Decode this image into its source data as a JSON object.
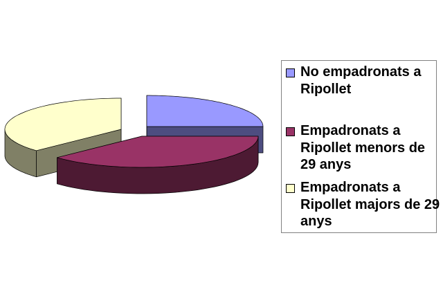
{
  "chart_data": {
    "type": "pie",
    "style": "3d-exploded",
    "legend_position": "right",
    "series": [
      {
        "name": "No empadronats a Ripollet",
        "value": 25,
        "color": "#9999ff",
        "side_color": "#4d4d80"
      },
      {
        "name": "Empadronats a Ripollet menors de 29 anys",
        "value": 38,
        "color": "#993366",
        "side_color": "#4d1a33"
      },
      {
        "name": "Empadronats a Ripollet majors de 29 anys",
        "value": 37,
        "color": "#ffffcc",
        "side_color": "#808066"
      }
    ]
  }
}
